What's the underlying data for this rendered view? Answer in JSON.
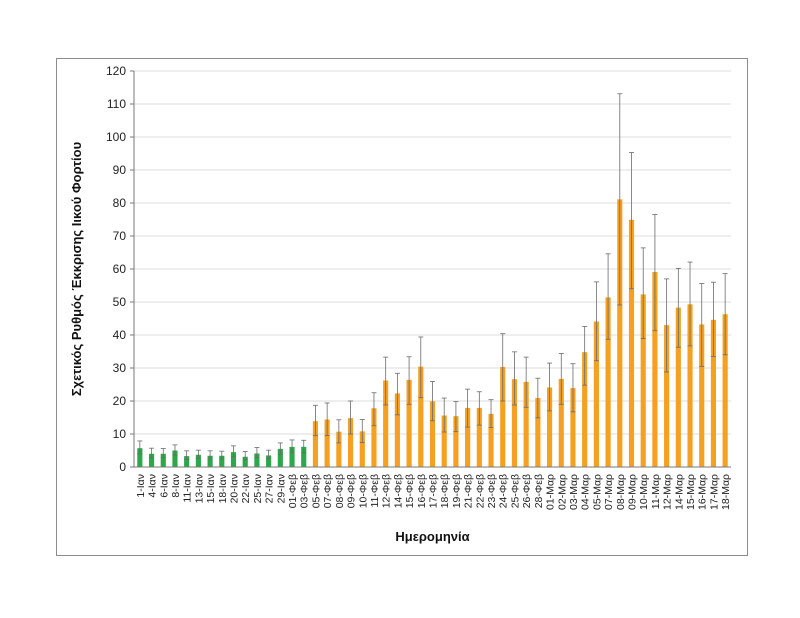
{
  "chart_data": {
    "type": "bar",
    "title": "",
    "xlabel": "Ημερομηνία",
    "ylabel": "Σχετικός Ρυθμός Έκκρισης Ιικού Φορτίου",
    "ylim": [
      0,
      120
    ],
    "yticks": [
      0,
      10,
      20,
      30,
      40,
      50,
      60,
      70,
      80,
      90,
      100,
      110,
      120
    ],
    "grid": true,
    "legend": "none",
    "categories": [
      "1-Ιαν",
      "4-Ιαν",
      "6-Ιαν",
      "8-Ιαν",
      "11-Ιαν",
      "13-Ιαν",
      "15-Ιαν",
      "18-Ιαν",
      "20-Ιαν",
      "22-Ιαν",
      "25-Ιαν",
      "27-Ιαν",
      "29-Ιαν",
      "01-Φεβ",
      "03-Φεβ",
      "05-Φεβ",
      "07-Φεβ",
      "08-Φεβ",
      "09-Φεβ",
      "10-Φεβ",
      "11-Φεβ",
      "12-Φεβ",
      "14-Φεβ",
      "15-Φεβ",
      "16-Φεβ",
      "17-Φεβ",
      "18-Φεβ",
      "19-Φεβ",
      "21-Φεβ",
      "22-Φεβ",
      "23-Φεβ",
      "24-Φεβ",
      "25-Φεβ",
      "26-Φεβ",
      "28-Φεβ",
      "01-Μαρ",
      "02-Μαρ",
      "03-Μαρ",
      "04-Μαρ",
      "05-Μαρ",
      "07-Μαρ",
      "08-Μαρ",
      "09-Μαρ",
      "10-Μαρ",
      "11-Μαρ",
      "12-Μαρ",
      "14-Μαρ",
      "15-Μαρ",
      "16-Μαρ",
      "17-Μαρ",
      "18-Μαρ"
    ],
    "values": [
      5.7,
      4.0,
      4.0,
      5.0,
      3.3,
      3.7,
      3.4,
      3.4,
      4.5,
      3.1,
      4.1,
      3.5,
      5.5,
      6.1,
      6.1,
      13.9,
      14.4,
      10.7,
      14.8,
      10.8,
      17.8,
      26.2,
      22.3,
      26.4,
      30.4,
      19.9,
      15.6,
      15.4,
      17.9,
      17.9,
      16.1,
      30.3,
      26.6,
      25.8,
      20.9,
      24.1,
      26.7,
      23.9,
      34.8,
      44.1,
      51.4,
      81.1,
      74.9,
      52.3,
      59.1,
      43.0,
      48.3,
      49.3,
      43.2,
      44.6,
      46.3
    ],
    "error_low": [
      4.0,
      2.8,
      2.8,
      3.6,
      2.3,
      2.6,
      2.4,
      2.4,
      3.1,
      2.2,
      2.9,
      2.5,
      3.9,
      4.3,
      4.3,
      9.5,
      9.5,
      7.3,
      10.0,
      7.4,
      12.5,
      18.8,
      15.8,
      19.0,
      21.0,
      14.0,
      10.6,
      10.7,
      12.1,
      12.7,
      12.0,
      20.0,
      18.8,
      18.1,
      14.9,
      17.0,
      19.0,
      16.7,
      24.8,
      32.2,
      38.7,
      49.1,
      54.0,
      38.9,
      41.3,
      28.8,
      36.3,
      36.7,
      30.5,
      33.5,
      34.0
    ],
    "error_high": [
      7.9,
      5.7,
      5.6,
      6.7,
      4.9,
      5.1,
      4.9,
      4.8,
      6.4,
      4.7,
      5.9,
      5.1,
      7.3,
      8.2,
      8.1,
      18.7,
      19.4,
      14.3,
      20.0,
      14.4,
      22.5,
      33.3,
      28.4,
      33.4,
      39.4,
      25.9,
      20.9,
      19.8,
      23.6,
      22.8,
      20.4,
      40.4,
      34.9,
      33.3,
      26.9,
      31.5,
      34.4,
      31.3,
      42.6,
      56.1,
      64.6,
      113.1,
      95.3,
      66.4,
      76.5,
      57.0,
      60.2,
      62.1,
      55.6,
      56.0,
      58.6
    ],
    "bar_colors": [
      "#2ca84a",
      "#2ca84a",
      "#2ca84a",
      "#2ca84a",
      "#2ca84a",
      "#2ca84a",
      "#2ca84a",
      "#2ca84a",
      "#2ca84a",
      "#2ca84a",
      "#2ca84a",
      "#2ca84a",
      "#2ca84a",
      "#2ca84a",
      "#2ca84a",
      "#f5a020",
      "#f5a020",
      "#f5a020",
      "#f5a020",
      "#f5a020",
      "#f5a020",
      "#f5a020",
      "#f5a020",
      "#f5a020",
      "#f5a020",
      "#f5a020",
      "#f5a020",
      "#f5a020",
      "#f5a020",
      "#f5a020",
      "#f5a020",
      "#f5a020",
      "#f5a020",
      "#f5a020",
      "#f5a020",
      "#f5a020",
      "#f5a020",
      "#f5a020",
      "#f5a020",
      "#f5a020",
      "#f5a020",
      "#f5a020",
      "#f5a020",
      "#f5a020",
      "#f5a020",
      "#f5a020",
      "#f5a020",
      "#f5a020",
      "#f5a020",
      "#f5a020",
      "#f5a020"
    ],
    "colors": {
      "green": "#2ca84a",
      "orange": "#f5a020",
      "grid": "#dcdcdc",
      "error_bar": "#6b6b6b"
    }
  }
}
